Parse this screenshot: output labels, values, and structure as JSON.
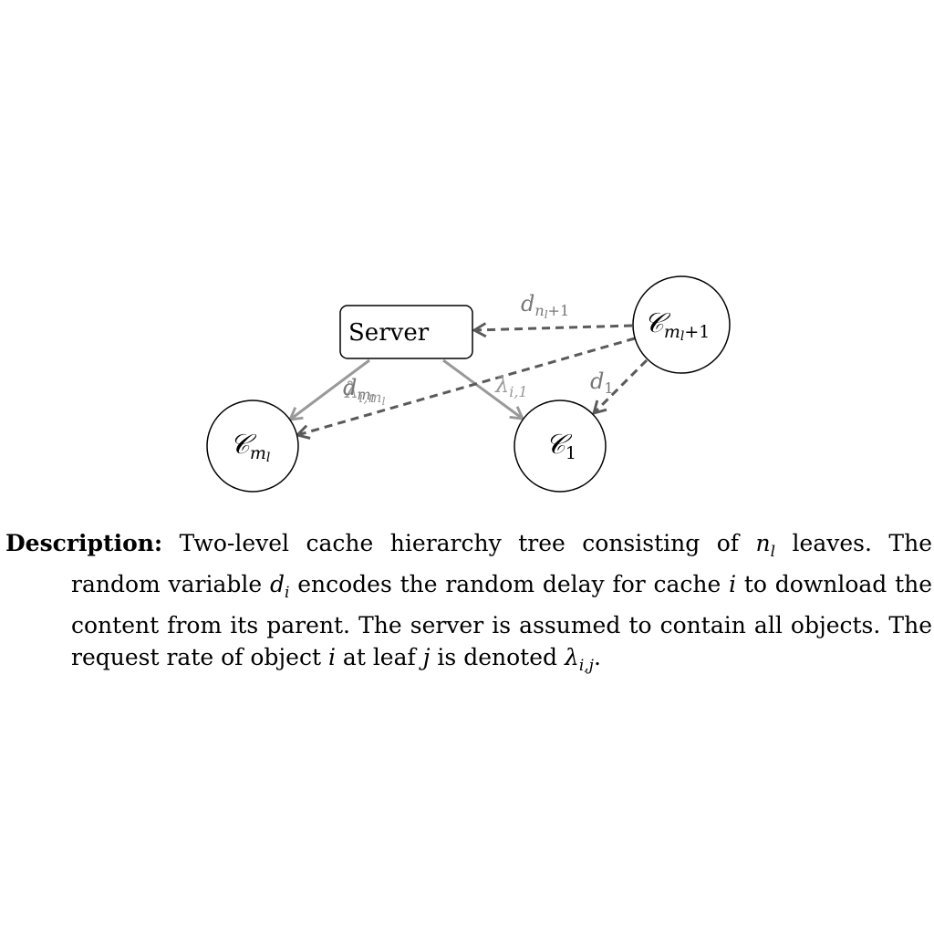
{
  "diagram": {
    "nodes": {
      "server": {
        "label": "Server"
      },
      "c_ml_plus_1": {
        "symbol": "𝒞",
        "sub": "m",
        "subsub": "l",
        "sub_tail": "+1"
      },
      "c_ml": {
        "symbol": "𝒞",
        "sub": "m",
        "subsub": "l"
      },
      "c_1": {
        "symbol": "𝒞",
        "sub": "1"
      }
    },
    "edge_labels": {
      "d_nl_plus_1": {
        "main": "d",
        "sub": "n",
        "subsub": "l",
        "sub_tail": "+1"
      },
      "d_1": {
        "main": "d",
        "sub": "1"
      },
      "d_ml": {
        "main": "d",
        "sub": "m",
        "subsub": "l"
      },
      "lambda_i_ml": {
        "main": "λ",
        "sub": "i,m",
        "subsub": "l"
      },
      "lambda_i_1": {
        "main": "λ",
        "sub": "i,1"
      }
    },
    "colors": {
      "solid_edge": "#999999",
      "dashed_edge": "#5a5a5a",
      "edge_label": "#777777"
    }
  },
  "caption": {
    "heading": "Description:",
    "text_1": " Two-level cache hierarchy tree consisting of ",
    "nl_main": "n",
    "nl_sub": "l",
    "text_2": " leaves. The random variable ",
    "di_main": "d",
    "di_sub": "i",
    "text_3": " encodes the random delay for cache ",
    "i_var": "i",
    "text_4": " to download the content from its parent. The server is assumed to contain all objects. The request rate of object ",
    "i_var_2": "i",
    "text_5": " at leaf ",
    "j_var": "j",
    "text_6": " is denoted ",
    "lambda_main": "λ",
    "lambda_sub": "i,j",
    "text_7": "."
  }
}
